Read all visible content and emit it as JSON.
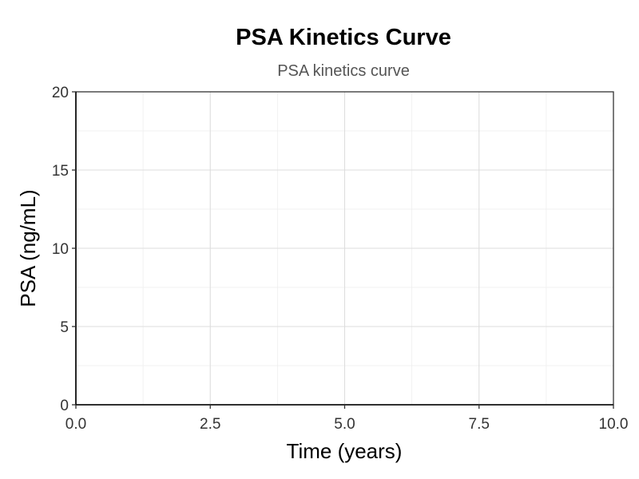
{
  "chart_data": {
    "type": "line",
    "title": "PSA Kinetics Curve",
    "subtitle": "PSA kinetics curve",
    "xlabel": "Time (years)",
    "ylabel": "PSA (ng/mL)",
    "xlim": [
      0,
      10
    ],
    "ylim": [
      0,
      20
    ],
    "x_ticks": [
      "0.0",
      "2.5",
      "5.0",
      "7.5",
      "10.0"
    ],
    "x_tick_values": [
      0,
      2.5,
      5,
      7.5,
      10
    ],
    "y_ticks": [
      "0",
      "5",
      "10",
      "15",
      "20"
    ],
    "y_tick_values": [
      0,
      5,
      10,
      15,
      20
    ],
    "grid": true,
    "series": []
  }
}
